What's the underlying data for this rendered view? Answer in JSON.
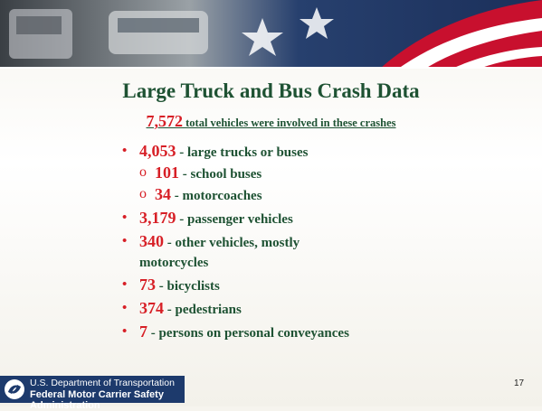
{
  "title": "Large Truck and Bus Crash Data",
  "summary": {
    "number": "7,572",
    "text": "total vehicles were involved in these crashes"
  },
  "items": [
    {
      "number": "4,053",
      "text": "- large trucks or buses",
      "subitems": [
        {
          "number": "101",
          "text": "- school buses"
        },
        {
          "number": "34",
          "text": "- motorcoaches"
        }
      ]
    },
    {
      "number": "3,179",
      "text": "- passenger vehicles"
    },
    {
      "number": "340",
      "text": "- other vehicles, mostly motorcycles"
    },
    {
      "number": "73",
      "text": "- bicyclists"
    },
    {
      "number": "374",
      "text": "- pedestrians"
    },
    {
      "number": "7",
      "text": "- persons on personal conveyances"
    }
  ],
  "footer": {
    "line1": "U.S. Department of Transportation",
    "line2": "Federal Motor Carrier Safety Administration"
  },
  "page_number": "17"
}
